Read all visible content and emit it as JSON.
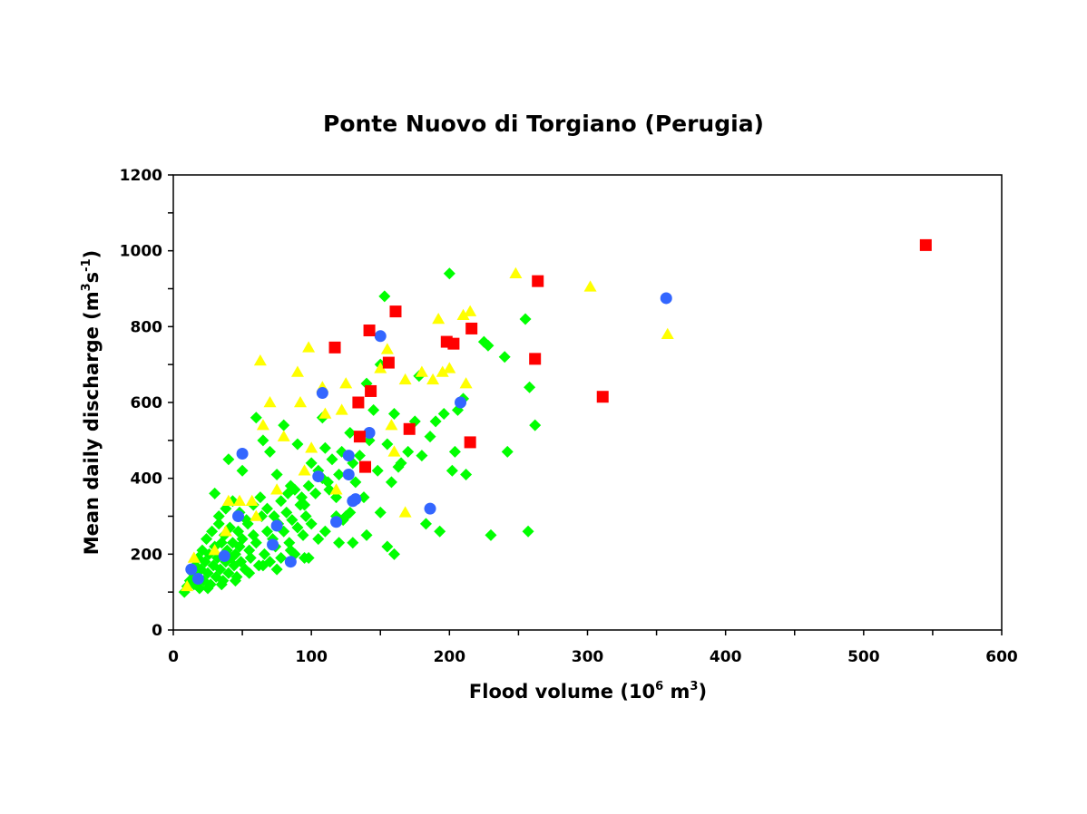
{
  "chart_data": {
    "type": "scatter",
    "title": "Ponte Nuovo di Torgiano (Perugia)",
    "xlabel": {
      "prefix": "Flood volume (10",
      "sup1": "6",
      "mid": " m",
      "sup2": "3",
      "suffix": ")"
    },
    "ylabel": {
      "prefix": "Mean daily discharge (m",
      "sup1": "3",
      "mid": "s",
      "sup2": "-1",
      "suffix": ")"
    },
    "xlim": [
      0,
      600
    ],
    "ylim": [
      0,
      1200
    ],
    "x_ticks": [
      0,
      100,
      200,
      300,
      400,
      500,
      600
    ],
    "y_ticks": [
      0,
      200,
      400,
      600,
      800,
      1000,
      1200
    ],
    "x_minor_ticks": [
      50,
      150,
      250,
      350,
      450,
      550
    ],
    "y_minor_ticks": [
      100,
      300,
      500,
      700,
      900,
      1100
    ],
    "grid": false,
    "legend": "none",
    "series": [
      {
        "marker": "diamond",
        "color": "#00ff00",
        "points": [
          [
            8,
            100
          ],
          [
            10,
            115
          ],
          [
            12,
            130
          ],
          [
            14,
            150
          ],
          [
            15,
            120
          ],
          [
            16,
            170
          ],
          [
            17,
            140
          ],
          [
            18,
            190
          ],
          [
            19,
            110
          ],
          [
            20,
            160
          ],
          [
            21,
            210
          ],
          [
            22,
            130
          ],
          [
            23,
            180
          ],
          [
            24,
            240
          ],
          [
            25,
            150
          ],
          [
            26,
            200
          ],
          [
            27,
            120
          ],
          [
            28,
            260
          ],
          [
            29,
            170
          ],
          [
            30,
            220
          ],
          [
            31,
            140
          ],
          [
            32,
            190
          ],
          [
            33,
            280
          ],
          [
            34,
            160
          ],
          [
            35,
            230
          ],
          [
            36,
            130
          ],
          [
            37,
            250
          ],
          [
            38,
            180
          ],
          [
            39,
            210
          ],
          [
            40,
            150
          ],
          [
            41,
            270
          ],
          [
            42,
            190
          ],
          [
            43,
            230
          ],
          [
            44,
            170
          ],
          [
            45,
            200
          ],
          [
            46,
            140
          ],
          [
            47,
            260
          ],
          [
            48,
            220
          ],
          [
            49,
            180
          ],
          [
            50,
            240
          ],
          [
            52,
            160
          ],
          [
            54,
            280
          ],
          [
            55,
            210
          ],
          [
            56,
            190
          ],
          [
            58,
            250
          ],
          [
            60,
            230
          ],
          [
            62,
            170
          ],
          [
            64,
            300
          ],
          [
            66,
            200
          ],
          [
            68,
            260
          ],
          [
            70,
            180
          ],
          [
            72,
            240
          ],
          [
            74,
            220
          ],
          [
            76,
            280
          ],
          [
            78,
            190
          ],
          [
            80,
            260
          ],
          [
            82,
            310
          ],
          [
            84,
            230
          ],
          [
            86,
            290
          ],
          [
            88,
            200
          ],
          [
            90,
            270
          ],
          [
            92,
            330
          ],
          [
            94,
            250
          ],
          [
            96,
            300
          ],
          [
            98,
            190
          ],
          [
            100,
            280
          ],
          [
            30,
            360
          ],
          [
            40,
            450
          ],
          [
            50,
            420
          ],
          [
            60,
            560
          ],
          [
            65,
            500
          ],
          [
            70,
            470
          ],
          [
            75,
            410
          ],
          [
            80,
            540
          ],
          [
            85,
            380
          ],
          [
            90,
            490
          ],
          [
            95,
            330
          ],
          [
            100,
            440
          ],
          [
            105,
            420
          ],
          [
            108,
            560
          ],
          [
            110,
            480
          ],
          [
            112,
            390
          ],
          [
            115,
            450
          ],
          [
            118,
            350
          ],
          [
            120,
            410
          ],
          [
            122,
            470
          ],
          [
            125,
            300
          ],
          [
            128,
            520
          ],
          [
            130,
            440
          ],
          [
            132,
            390
          ],
          [
            135,
            460
          ],
          [
            138,
            350
          ],
          [
            140,
            650
          ],
          [
            142,
            500
          ],
          [
            145,
            580
          ],
          [
            148,
            420
          ],
          [
            150,
            700
          ],
          [
            153,
            880
          ],
          [
            155,
            490
          ],
          [
            158,
            390
          ],
          [
            160,
            570
          ],
          [
            163,
            430
          ],
          [
            165,
            440
          ],
          [
            170,
            470
          ],
          [
            175,
            550
          ],
          [
            178,
            670
          ],
          [
            180,
            460
          ],
          [
            183,
            280
          ],
          [
            186,
            510
          ],
          [
            190,
            550
          ],
          [
            193,
            260
          ],
          [
            196,
            570
          ],
          [
            200,
            940
          ],
          [
            202,
            420
          ],
          [
            204,
            470
          ],
          [
            206,
            580
          ],
          [
            210,
            610
          ],
          [
            212,
            410
          ],
          [
            225,
            760
          ],
          [
            228,
            750
          ],
          [
            230,
            250
          ],
          [
            240,
            720
          ],
          [
            242,
            470
          ],
          [
            255,
            820
          ],
          [
            257,
            260
          ],
          [
            258,
            640
          ],
          [
            262,
            540
          ],
          [
            130,
            230
          ],
          [
            140,
            250
          ],
          [
            150,
            310
          ],
          [
            155,
            220
          ],
          [
            160,
            200
          ],
          [
            120,
            230
          ],
          [
            110,
            260
          ],
          [
            105,
            240
          ],
          [
            95,
            190
          ],
          [
            85,
            210
          ],
          [
            75,
            160
          ],
          [
            65,
            170
          ],
          [
            55,
            150
          ],
          [
            45,
            130
          ],
          [
            35,
            120
          ],
          [
            25,
            110
          ],
          [
            33,
            300
          ],
          [
            38,
            320
          ],
          [
            43,
            340
          ],
          [
            48,
            310
          ],
          [
            53,
            290
          ],
          [
            58,
            330
          ],
          [
            63,
            350
          ],
          [
            68,
            320
          ],
          [
            73,
            300
          ],
          [
            78,
            340
          ],
          [
            83,
            360
          ],
          [
            88,
            370
          ],
          [
            93,
            350
          ],
          [
            98,
            380
          ],
          [
            103,
            360
          ],
          [
            108,
            400
          ],
          [
            113,
            370
          ],
          [
            118,
            300
          ],
          [
            123,
            290
          ],
          [
            128,
            310
          ]
        ]
      },
      {
        "marker": "triangle",
        "color": "#ffff00",
        "points": [
          [
            10,
            115
          ],
          [
            15,
            190
          ],
          [
            30,
            210
          ],
          [
            38,
            260
          ],
          [
            40,
            340
          ],
          [
            48,
            340
          ],
          [
            57,
            340
          ],
          [
            60,
            300
          ],
          [
            63,
            710
          ],
          [
            65,
            540
          ],
          [
            70,
            600
          ],
          [
            75,
            370
          ],
          [
            80,
            510
          ],
          [
            90,
            680
          ],
          [
            92,
            600
          ],
          [
            95,
            420
          ],
          [
            98,
            745
          ],
          [
            100,
            480
          ],
          [
            108,
            640
          ],
          [
            110,
            570
          ],
          [
            118,
            370
          ],
          [
            122,
            580
          ],
          [
            125,
            650
          ],
          [
            150,
            690
          ],
          [
            155,
            740
          ],
          [
            158,
            540
          ],
          [
            160,
            470
          ],
          [
            168,
            660
          ],
          [
            180,
            680
          ],
          [
            188,
            660
          ],
          [
            192,
            820
          ],
          [
            195,
            680
          ],
          [
            200,
            690
          ],
          [
            210,
            830
          ],
          [
            212,
            650
          ],
          [
            215,
            840
          ],
          [
            248,
            940
          ],
          [
            302,
            905
          ],
          [
            358,
            780
          ],
          [
            168,
            310
          ]
        ]
      },
      {
        "marker": "circle",
        "color": "#3366ff",
        "points": [
          [
            13,
            160
          ],
          [
            18,
            135
          ],
          [
            37,
            195
          ],
          [
            47,
            300
          ],
          [
            50,
            465
          ],
          [
            72,
            225
          ],
          [
            75,
            275
          ],
          [
            85,
            180
          ],
          [
            105,
            405
          ],
          [
            108,
            625
          ],
          [
            118,
            285
          ],
          [
            127,
            460
          ],
          [
            127,
            410
          ],
          [
            130,
            340
          ],
          [
            132,
            345
          ],
          [
            142,
            520
          ],
          [
            150,
            775
          ],
          [
            186,
            320
          ],
          [
            208,
            600
          ],
          [
            357,
            875
          ]
        ]
      },
      {
        "marker": "square",
        "color": "#ff0000",
        "points": [
          [
            117,
            745
          ],
          [
            134,
            600
          ],
          [
            135,
            510
          ],
          [
            139,
            430
          ],
          [
            142,
            790
          ],
          [
            143,
            630
          ],
          [
            156,
            705
          ],
          [
            161,
            840
          ],
          [
            171,
            530
          ],
          [
            198,
            760
          ],
          [
            203,
            755
          ],
          [
            215,
            495
          ],
          [
            216,
            795
          ],
          [
            262,
            715
          ],
          [
            264,
            920
          ],
          [
            311,
            615
          ],
          [
            545,
            1015
          ]
        ]
      }
    ]
  }
}
